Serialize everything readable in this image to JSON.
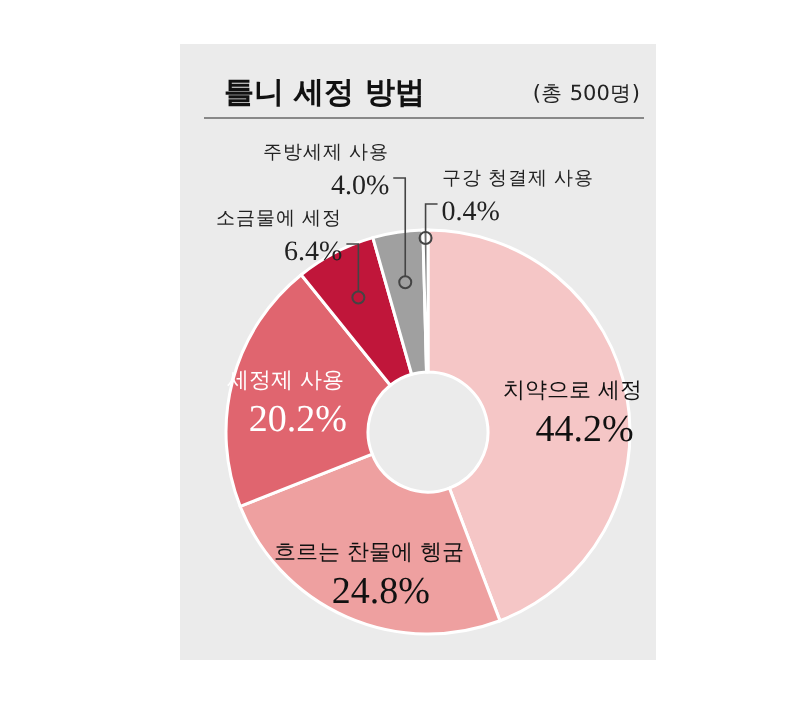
{
  "chart_data": {
    "type": "donut",
    "title": "틀니 세정 방법",
    "subtitle": "(총 500명)",
    "categories": [
      "치약으로 세정",
      "흐르는 찬물에 헹굼",
      "세정제 사용",
      "소금물에 세정",
      "주방세제 사용",
      "구강 청결제 사용"
    ],
    "values": [
      44.2,
      24.8,
      20.2,
      6.4,
      4.0,
      0.4
    ],
    "colors": [
      "#f5c6c6",
      "#eea0a0",
      "#e0656f",
      "#c0163a",
      "#a0a0a0",
      "#6e6e6e"
    ],
    "value_labels": [
      "44.2%",
      "24.8%",
      "20.2%",
      "6.4%",
      "4.0%",
      "0.4%"
    ]
  }
}
